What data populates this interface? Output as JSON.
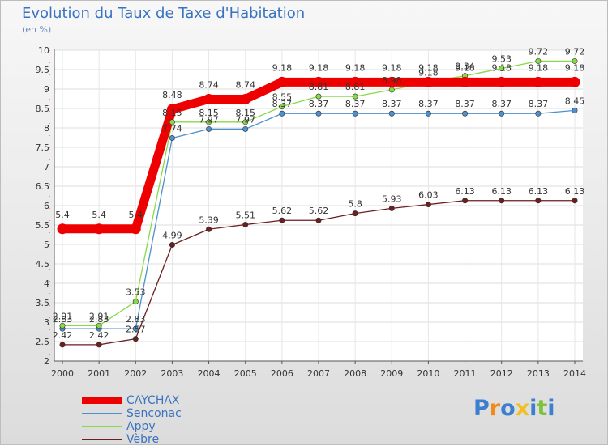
{
  "chart_data": {
    "type": "line",
    "title": "Evolution du Taux de Taxe d'Habitation",
    "unit_label": "(en %)",
    "x": [
      "2000",
      "2001",
      "2002",
      "2003",
      "2004",
      "2005",
      "2006",
      "2007",
      "2008",
      "2009",
      "2010",
      "2011",
      "2012",
      "2013",
      "2014"
    ],
    "ylim": [
      2,
      10
    ],
    "yticks": [
      "2",
      "2.5",
      "3",
      "3.5",
      "4",
      "4.5",
      "5",
      "5.5",
      "6",
      "6.5",
      "7",
      "7.5",
      "8",
      "8.5",
      "9",
      "9.5",
      "10"
    ],
    "grid": true,
    "legend_position": "bottom-left",
    "series": [
      {
        "name": "CAYCHAX",
        "color": "#ee0000",
        "values": [
          5.4,
          5.4,
          5.4,
          8.48,
          8.74,
          8.74,
          9.18,
          9.18,
          9.18,
          9.18,
          9.18,
          9.18,
          9.18,
          9.18,
          9.18
        ],
        "labels": [
          "5.4",
          "5.4",
          "5.4",
          "8.48",
          "8.74",
          "8.74",
          "9.18",
          "9.18",
          "9.18",
          "9.18",
          "9.18",
          "9.18",
          "9.18",
          "9.18",
          "9.18"
        ]
      },
      {
        "name": "Senconac",
        "color": "#4d90cd",
        "values": [
          2.83,
          2.83,
          2.83,
          7.74,
          7.97,
          7.97,
          8.37,
          8.37,
          8.37,
          8.37,
          8.37,
          8.37,
          8.37,
          8.37,
          8.45
        ],
        "labels": [
          "2.83",
          "2.83",
          "2.83",
          "7.74",
          "7.97",
          "7.97",
          "8.37",
          "8.37",
          "8.37",
          "8.37",
          "8.37",
          "8.37",
          "8.37",
          "8.37",
          "8.45"
        ]
      },
      {
        "name": "Appy",
        "color": "#88d948",
        "values": [
          2.91,
          2.91,
          3.53,
          8.15,
          8.15,
          8.15,
          8.55,
          8.81,
          8.81,
          8.98,
          9.18,
          9.34,
          9.53,
          9.72,
          9.72
        ],
        "labels": [
          "2.91",
          "2.91",
          "3.53",
          "8.15",
          "8.15",
          "8.15",
          "8.55",
          "8.81",
          "8.81",
          "8.98",
          "9.18",
          "9.34",
          "9.53",
          "9.72",
          "9.72"
        ]
      },
      {
        "name": "Vèbre",
        "color": "#6b1f1f",
        "values": [
          2.42,
          2.42,
          2.57,
          4.99,
          5.39,
          5.51,
          5.62,
          5.62,
          5.8,
          5.93,
          6.03,
          6.13,
          6.13,
          6.13,
          6.13
        ],
        "labels": [
          "2.42",
          "2.42",
          "2.57",
          "4.99",
          "5.39",
          "5.51",
          "5.62",
          "5.62",
          "5.8",
          "5.93",
          "6.03",
          "6.13",
          "6.13",
          "6.13",
          "6.13"
        ]
      }
    ]
  },
  "logo": {
    "letters": [
      "P",
      "r",
      "o",
      "x",
      "i",
      "t",
      "i"
    ],
    "colors": [
      "#3a7fd0",
      "#f08a1a",
      "#3a7fd0",
      "#f0c020",
      "#3a7fd0",
      "#7cc23a",
      "#3a7fd0"
    ]
  }
}
